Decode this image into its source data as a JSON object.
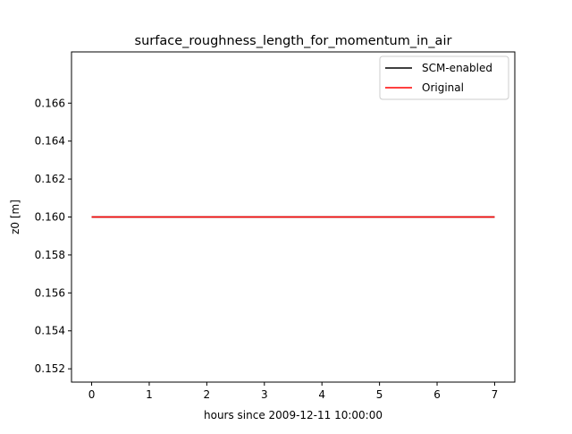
{
  "chart_data": {
    "type": "line",
    "title": "surface_roughness_length_for_momentum_in_air",
    "xlabel": "hours since 2009-12-11 10:00:00",
    "ylabel": "z0 [m]",
    "xlim": [
      -0.35,
      7.35
    ],
    "ylim": [
      0.1513,
      0.1687
    ],
    "xticks": [
      0,
      1,
      2,
      3,
      4,
      5,
      6,
      7
    ],
    "yticks": [
      0.152,
      0.154,
      0.156,
      0.158,
      0.16,
      0.162,
      0.164,
      0.166
    ],
    "ytick_labels": [
      "0.152",
      "0.154",
      "0.156",
      "0.158",
      "0.160",
      "0.162",
      "0.164",
      "0.166"
    ],
    "grid": false,
    "legend_position": "top-right",
    "series": [
      {
        "name": "SCM-enabled",
        "color": "#000000",
        "x": [
          0,
          7
        ],
        "y": [
          0.16,
          0.16
        ]
      },
      {
        "name": "Original",
        "color": "#ff0000",
        "x": [
          0,
          7
        ],
        "y": [
          0.16,
          0.16
        ]
      }
    ]
  }
}
